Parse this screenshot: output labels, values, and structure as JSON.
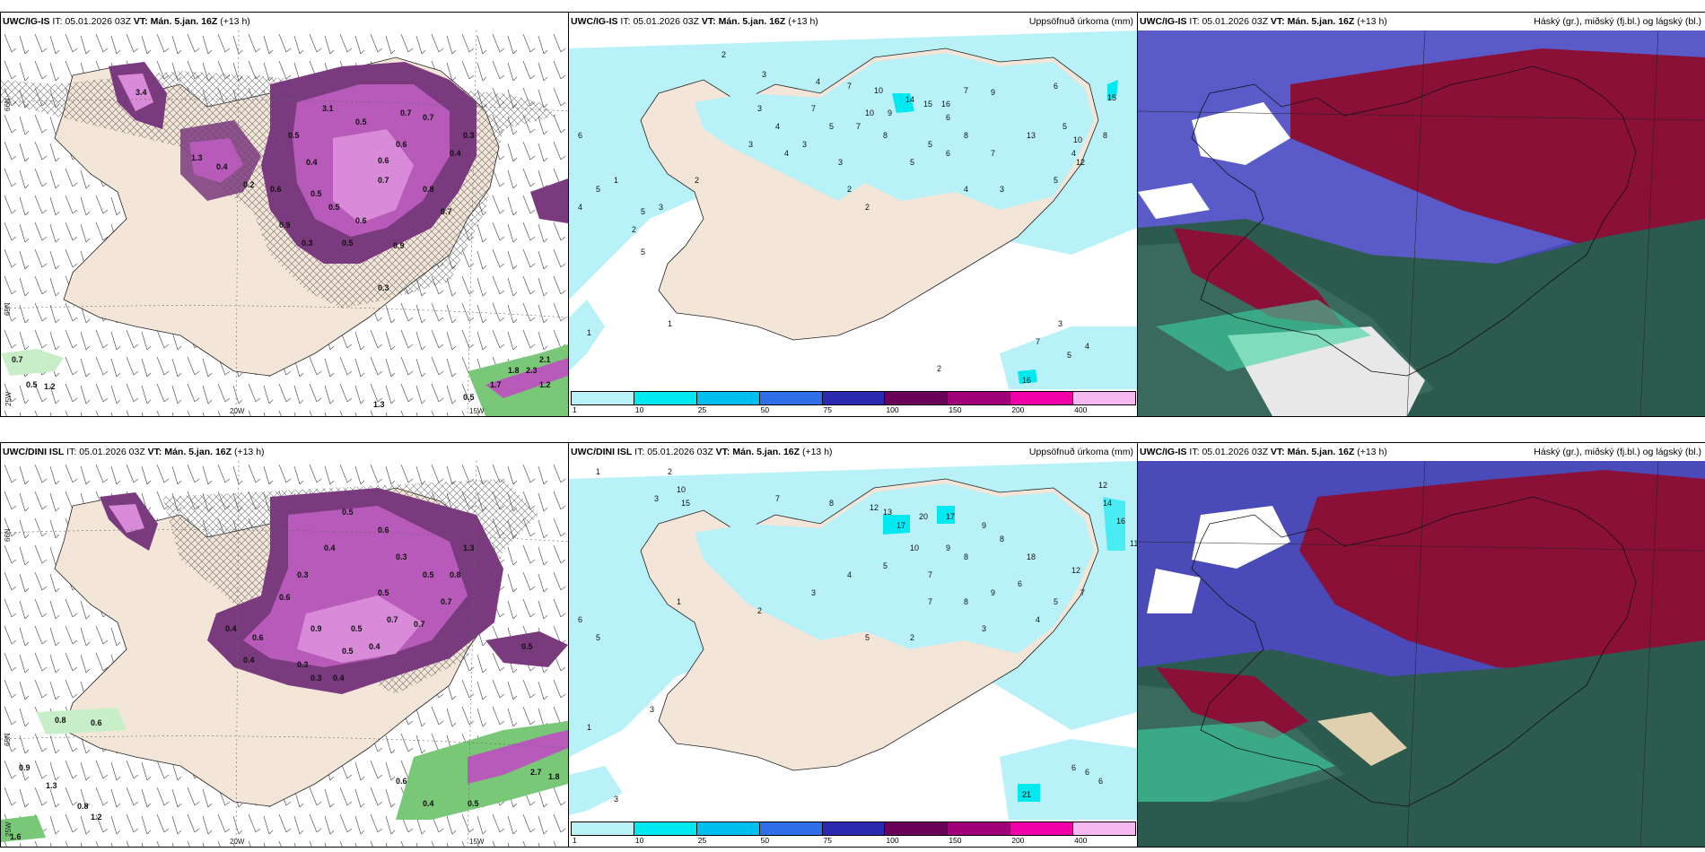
{
  "panels": {
    "p1": {
      "model": "UWC/IG-IS",
      "it_label": "IT:",
      "it_value": "05.01.2026 03Z",
      "vt_label": "VT:",
      "vt_value": "Mán. 5.jan. 16Z",
      "lead": "(+13 h)",
      "right_title": ""
    },
    "p2": {
      "model": "UWC/IG-IS",
      "it_label": "IT:",
      "it_value": "05.01.2026 03Z",
      "vt_label": "VT:",
      "vt_value": "Mán. 5.jan. 16Z",
      "lead": "(+13 h)",
      "right_title": "Uppsöfnuð úrkoma (mm)"
    },
    "p3": {
      "model": "UWC/IG-IS",
      "it_label": "IT:",
      "it_value": "05.01.2026 03Z",
      "vt_label": "VT:",
      "vt_value": "Mán. 5.jan. 16Z",
      "lead": "(+13 h)",
      "right_title": "Háský (gr.), miðský (fj.bl.) og lágský (bl.)"
    },
    "p4": {
      "model": "UWC/DINI ISL",
      "it_label": "IT:",
      "it_value": "05.01.2026 03Z",
      "vt_label": "VT:",
      "vt_value": "Mán. 5.jan. 16Z",
      "lead": "(+13 h)",
      "right_title": ""
    },
    "p5": {
      "model": "UWC/DINI ISL",
      "it_label": "IT:",
      "it_value": "05.01.2026 03Z",
      "vt_label": "VT:",
      "vt_value": "Mán. 5.jan. 16Z",
      "lead": "(+13 h)",
      "right_title": "Uppsöfnuð úrkoma (mm)"
    },
    "p6": {
      "model": "UWC/IG-IS",
      "it_label": "IT:",
      "it_value": "05.01.2026 03Z",
      "vt_label": "VT:",
      "vt_value": "Mán. 5.jan. 16Z",
      "lead": "(+13 h)",
      "right_title": "Háský (gr.), miðský (fj.bl.) og lágský (bl.)"
    }
  },
  "grid_labels": {
    "lat66": "66N",
    "lat65": "65N",
    "lon20": "20W",
    "lon15": "15W",
    "lon25": "25W"
  },
  "colorbar": {
    "ticks": [
      "1",
      "10",
      "25",
      "50",
      "75",
      "100",
      "150",
      "200",
      "400"
    ],
    "colors": [
      "#b8f2f8",
      "#00e8f0",
      "#00c0f0",
      "#2f6fe8",
      "#2a2ab0",
      "#6a005a",
      "#a0007a",
      "#f000a8",
      "#f6b8f0"
    ]
  },
  "colors": {
    "land": "#f3e5d8",
    "sea": "#ffffff",
    "precip_light": "#b8f2f8",
    "snow_light": "#d98ad8",
    "snow_mid": "#b85aba",
    "snow_dark": "#7a3a7e",
    "rain_green": "#78c878",
    "cloud_high": "#8a1038",
    "cloud_mid": "#2d5a4e",
    "cloud_low": "#4a4ab8"
  },
  "snow_values_p1": [
    "3.4",
    "3.1",
    "0.5",
    "0.6",
    "0.4",
    "0.7",
    "0.5",
    "0.9",
    "0.6",
    "0.8",
    "0.3",
    "0.4",
    "0.5",
    "0.7",
    "0.9",
    "0.6",
    "0.7",
    "1.3",
    "0.4",
    "0.2",
    "0.5",
    "0.3",
    "0.7",
    "0.3",
    "0.5",
    "0.6"
  ],
  "sea_values_p1": [
    "0.7",
    "0.5",
    "1.2",
    "1.3",
    "2.1",
    "1.8",
    "2.3",
    "1.2",
    "0.5",
    "1.7"
  ],
  "snow_values_p4": [
    "0.5",
    "0.4",
    "0.6",
    "0.3",
    "0.5",
    "0.7",
    "0.4",
    "0.6",
    "0.3",
    "0.5",
    "0.7",
    "0.9",
    "0.4",
    "0.5",
    "0.7",
    "0.8",
    "0.5",
    "0.3",
    "0.4",
    "0.6",
    "0.3",
    "0.5",
    "1.3",
    "0.4"
  ],
  "sea_values_p4": [
    "0.8",
    "0.6",
    "0.9",
    "1.3",
    "0.8",
    "1.2",
    "0.6",
    "0.4",
    "2.7",
    "1.8",
    "0.5",
    "1.6"
  ],
  "precip_values_p2": [
    "2",
    "3",
    "3",
    "4",
    "7",
    "10",
    "7",
    "4",
    "5",
    "7",
    "8",
    "3",
    "9",
    "10",
    "14",
    "15",
    "16",
    "7",
    "9",
    "6",
    "5",
    "4",
    "13",
    "10",
    "12",
    "5",
    "3",
    "4",
    "6",
    "8",
    "7",
    "5",
    "3",
    "2",
    "2",
    "4",
    "3",
    "6",
    "5",
    "2",
    "1",
    "4",
    "5",
    "5",
    "2",
    "3",
    "1",
    "5",
    "15",
    "16",
    "2",
    "7",
    "5",
    "4",
    "3",
    "1",
    "6",
    "8"
  ],
  "precip_values_p5": [
    "1",
    "2",
    "3",
    "10",
    "15",
    "7",
    "8",
    "12",
    "13",
    "17",
    "20",
    "17",
    "12",
    "14",
    "16",
    "11",
    "18",
    "9",
    "8",
    "6",
    "5",
    "4",
    "3",
    "7",
    "2",
    "6",
    "12",
    "21",
    "5",
    "3",
    "1",
    "6",
    "9",
    "7",
    "8",
    "10",
    "5",
    "4",
    "3",
    "2",
    "1",
    "6",
    "5",
    "9",
    "8",
    "7",
    "6",
    "3"
  ]
}
